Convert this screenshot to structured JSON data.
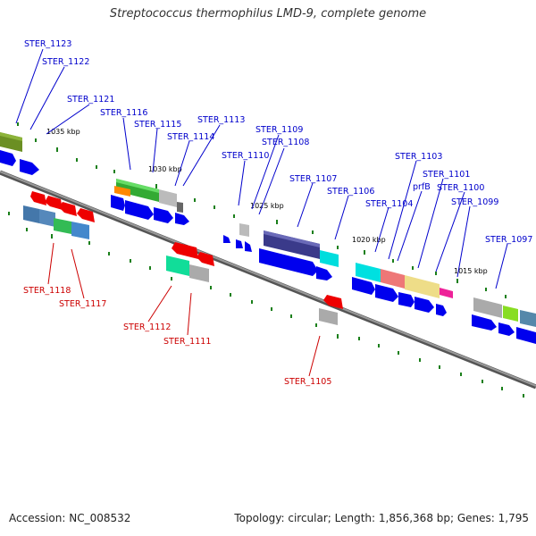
{
  "title": "Streptococcus thermophilus LMD-9, complete genome",
  "footer": {
    "accession": "Accession: NC_008532",
    "summary": "Topology: circular; Length: 1,856,368 bp; Genes: 1,795"
  },
  "kbp_labels": [
    "1035 kbp",
    "1030 kbp",
    "1025 kbp",
    "1020 kbp",
    "1015 kbp"
  ],
  "upper_labels": [
    "STER_1123",
    "STER_1122",
    "STER_1121",
    "STER_1116",
    "STER_1115",
    "STER_1114",
    "STER_1113",
    "STER_1110",
    "STER_1109",
    "STER_1108",
    "STER_1107",
    "STER_1106",
    "STER_1104",
    "STER_1103",
    "prfB",
    "STER_1101",
    "STER_1100",
    "STER_1099",
    "STER_1097"
  ],
  "lower_labels": [
    "STER_1118",
    "STER_1117",
    "STER_1112",
    "STER_1111",
    "STER_1105"
  ],
  "colors": {
    "forward_arrow": "#0000ee",
    "reverse_arrow": "#ee0000",
    "backbone": "#888888",
    "label_up": "#0000cc",
    "label_down": "#cc0000",
    "tick": "#1a7f1a"
  }
}
